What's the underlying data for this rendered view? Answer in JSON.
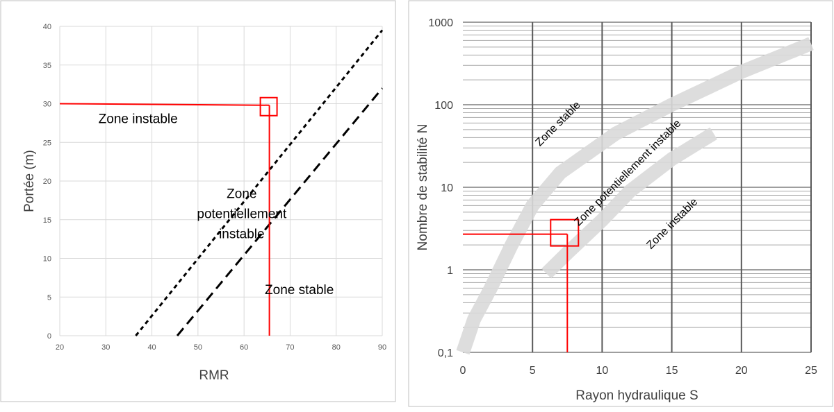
{
  "chart_data": [
    {
      "type": "line",
      "title": "",
      "xlabel": "RMR",
      "ylabel": "Portée (m)",
      "xlim": [
        20,
        90
      ],
      "ylim": [
        0,
        40
      ],
      "xticks": [
        "20",
        "30",
        "40",
        "50",
        "60",
        "70",
        "80",
        "90"
      ],
      "yticks": [
        "0",
        "5",
        "10",
        "15",
        "20",
        "25",
        "30",
        "35",
        "40"
      ],
      "grid": true,
      "series": [
        {
          "style": "dashed-short",
          "color": "#000000",
          "points": [
            [
              36.5,
              0
            ],
            [
              90,
              39.5
            ]
          ]
        },
        {
          "style": "dashed-long",
          "color": "#000000",
          "points": [
            [
              45.5,
              0
            ],
            [
              90,
              32
            ]
          ]
        },
        {
          "style": "solid",
          "color": "#ff0000",
          "points": [
            [
              20,
              30
            ],
            [
              65.5,
              29.8
            ]
          ]
        },
        {
          "style": "solid",
          "color": "#ff0000",
          "points": [
            [
              65.5,
              29.8
            ],
            [
              65.5,
              0
            ]
          ]
        }
      ],
      "marker_box": {
        "x": 65.5,
        "y": 29.8,
        "color": "#ff0000"
      },
      "annotations": [
        {
          "lines": [
            "Zone instable"
          ],
          "x": 37,
          "y": 27.5
        },
        {
          "lines": [
            "Zone",
            "potentiellement",
            "instable"
          ],
          "x": 59.5,
          "y": 17.8
        },
        {
          "lines": [
            "Zone stable"
          ],
          "x": 72,
          "y": 5.4
        }
      ]
    },
    {
      "type": "area",
      "title": "",
      "xlabel": "Rayon hydraulique S",
      "ylabel": "Nombre de stabilité N",
      "xlim": [
        0,
        25
      ],
      "ylim": [
        0.1,
        1000
      ],
      "yscale": "log",
      "xticks": [
        "0",
        "5",
        "10",
        "15",
        "20",
        "25"
      ],
      "yticks": [
        "0,1",
        "1",
        "10",
        "100",
        "1000"
      ],
      "grid": true,
      "bands": [
        {
          "color": "#d9d9d9",
          "points": [
            [
              0,
              0.1
            ],
            [
              0.8,
              0.25
            ],
            [
              2,
              0.6
            ],
            [
              3.5,
              2
            ],
            [
              5,
              6
            ],
            [
              7,
              15
            ],
            [
              11,
              45
            ],
            [
              15,
              100
            ],
            [
              20,
              250
            ],
            [
              25,
              550
            ]
          ]
        },
        {
          "color": "#d9d9d9",
          "points": [
            [
              6,
              0.9
            ],
            [
              7.5,
              1.6
            ],
            [
              10,
              4
            ],
            [
              12,
              9
            ],
            [
              15,
              22
            ],
            [
              18,
              45
            ]
          ]
        }
      ],
      "series": [
        {
          "style": "solid",
          "color": "#ff0000",
          "points": [
            [
              0,
              2.7
            ],
            [
              7.5,
              2.7
            ]
          ]
        },
        {
          "style": "solid",
          "color": "#ff0000",
          "points": [
            [
              7.5,
              2.7
            ],
            [
              7.5,
              0.1
            ]
          ]
        }
      ],
      "marker_box": {
        "x": 7.3,
        "y": 2.6,
        "color": "#ff0000"
      },
      "annotations": [
        {
          "lines": [
            "Zone stable"
          ],
          "x": 7,
          "y": 55,
          "rotate": -45
        },
        {
          "lines": [
            "Zone potentiellement instable"
          ],
          "x": 12,
          "y": 14,
          "rotate": -45
        },
        {
          "lines": [
            "Zone instable"
          ],
          "x": 15.2,
          "y": 3.4,
          "rotate": -45
        }
      ]
    }
  ]
}
